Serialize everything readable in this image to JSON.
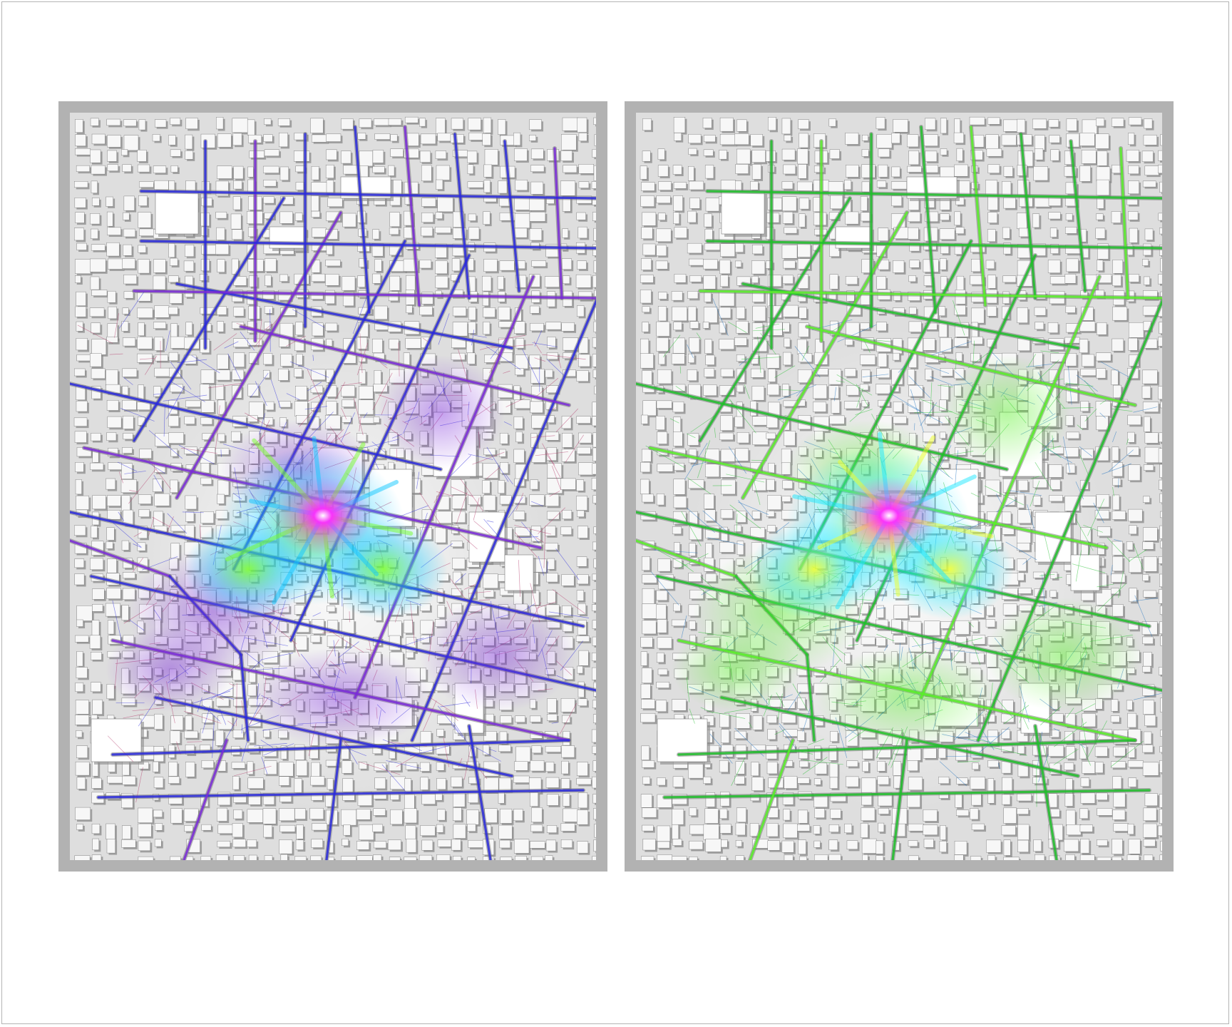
{
  "panels": [
    {
      "id": "left",
      "scheme": "blue-purple",
      "colors": {
        "base": "#dedede",
        "building": "#f7f7f7",
        "street_shadow": "#8a8a8a",
        "flow_low": "#2a2adc",
        "flow_mid": "#7a2ad8",
        "flow_trace": "#b43a6a",
        "flow_high_a": "#12c8ff",
        "flow_high_b": "#7aff2a",
        "hotspot": "#ff2aff"
      }
    },
    {
      "id": "right",
      "scheme": "green-yellow",
      "colors": {
        "base": "#dedede",
        "building": "#f7f7f7",
        "street_shadow": "#8a8a8a",
        "flow_low": "#1fbf2a",
        "flow_mid": "#58f028",
        "flow_trace": "#1a6fbf",
        "flow_high_a": "#1fe8ff",
        "flow_high_b": "#f0ff2a",
        "hotspot": "#ff2aff"
      }
    }
  ],
  "frame_color": "#b2b2b2",
  "border_color": "#b4b4b4"
}
